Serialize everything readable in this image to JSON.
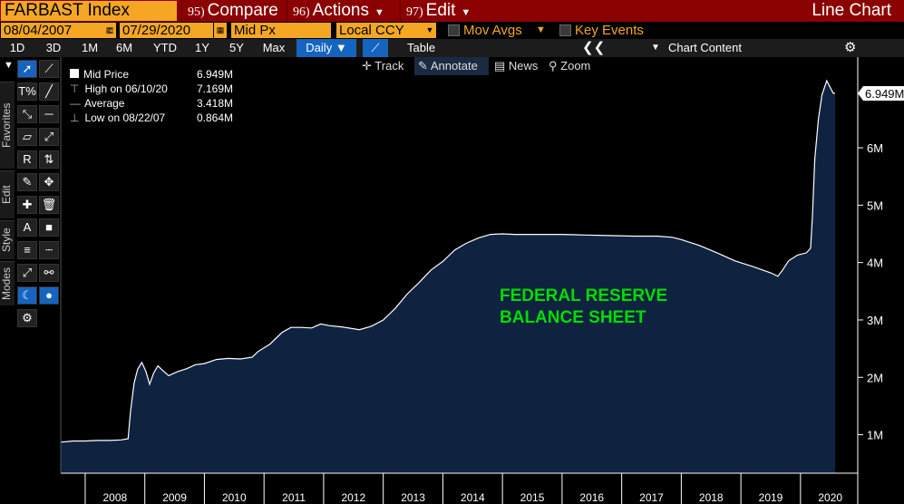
{
  "toolbar": {
    "ticker": "FARBAST Index",
    "compare_num": "95)",
    "compare_label": "Compare",
    "actions_num": "96)",
    "actions_label": "Actions",
    "edit_num": "97)",
    "edit_label": "Edit",
    "chart_kind": "Line Chart"
  },
  "options": {
    "start_date": "08/04/2007",
    "end_date": "07/29/2020",
    "dash": "-",
    "price_field": "Mid Px",
    "currency": "Local CCY",
    "mov_avgs": "Mov Avgs",
    "key_events": "Key Events"
  },
  "ranges": [
    "1D",
    "3D",
    "1M",
    "6M",
    "YTD",
    "1Y",
    "5Y",
    "Max"
  ],
  "frequency": "Daily",
  "table_label": "Table",
  "chart_content_label": "Chart Content",
  "subtools": {
    "track": "Track",
    "annotate": "Annotate",
    "news": "News",
    "zoom": "Zoom"
  },
  "side_tabs": [
    "Favorites",
    "Edit",
    "Style",
    "Modes"
  ],
  "legend": {
    "rows": [
      {
        "label": "Mid Price",
        "value": "6.949M"
      },
      {
        "label": "High on 06/10/20",
        "value": "7.169M"
      },
      {
        "label": "Average",
        "value": "3.418M"
      },
      {
        "label": "Low on 08/22/07",
        "value": "0.864M"
      }
    ]
  },
  "colors": {
    "brand_bar": "#8b0000",
    "field": "#f5a623",
    "area_fill": "#0f2340",
    "area_line": "#ffffff",
    "annotation": "#00dd00",
    "selected": "#1565c0"
  },
  "chart_data": {
    "type": "area",
    "title": "",
    "annotation": "FEDERAL RESERVE\nBALANCE SHEET",
    "annotation_lines": [
      "FEDERAL RESERVE",
      "BALANCE SHEET"
    ],
    "xlabel": "",
    "ylabel": "",
    "x_ticks": [
      "2008",
      "2009",
      "2010",
      "2011",
      "2012",
      "2013",
      "2014",
      "2015",
      "2016",
      "2017",
      "2018",
      "2019",
      "2020"
    ],
    "y_ticks": [
      "1M",
      "2M",
      "3M",
      "4M",
      "5M",
      "6M"
    ],
    "ylim": [
      0.33,
      7.58
    ],
    "xlim": [
      2007.59,
      2020.58
    ],
    "last_value_label": "6.949M",
    "grid": false,
    "series": [
      {
        "name": "Mid Price",
        "points": [
          [
            2007.59,
            0.87
          ],
          [
            2007.8,
            0.89
          ],
          [
            2008.0,
            0.89
          ],
          [
            2008.2,
            0.9
          ],
          [
            2008.4,
            0.9
          ],
          [
            2008.6,
            0.91
          ],
          [
            2008.72,
            0.93
          ],
          [
            2008.76,
            1.4
          ],
          [
            2008.82,
            1.9
          ],
          [
            2008.88,
            2.14
          ],
          [
            2008.95,
            2.26
          ],
          [
            2009.02,
            2.1
          ],
          [
            2009.08,
            1.88
          ],
          [
            2009.15,
            2.08
          ],
          [
            2009.22,
            2.2
          ],
          [
            2009.3,
            2.12
          ],
          [
            2009.4,
            2.03
          ],
          [
            2009.55,
            2.1
          ],
          [
            2009.7,
            2.15
          ],
          [
            2009.85,
            2.22
          ],
          [
            2010.0,
            2.24
          ],
          [
            2010.2,
            2.31
          ],
          [
            2010.4,
            2.33
          ],
          [
            2010.6,
            2.32
          ],
          [
            2010.8,
            2.35
          ],
          [
            2010.9,
            2.45
          ],
          [
            2011.1,
            2.58
          ],
          [
            2011.3,
            2.78
          ],
          [
            2011.45,
            2.87
          ],
          [
            2011.6,
            2.87
          ],
          [
            2011.8,
            2.86
          ],
          [
            2011.95,
            2.93
          ],
          [
            2012.1,
            2.9
          ],
          [
            2012.3,
            2.88
          ],
          [
            2012.6,
            2.83
          ],
          [
            2012.8,
            2.89
          ],
          [
            2013.0,
            3.0
          ],
          [
            2013.2,
            3.2
          ],
          [
            2013.4,
            3.45
          ],
          [
            2013.6,
            3.65
          ],
          [
            2013.8,
            3.87
          ],
          [
            2014.0,
            4.02
          ],
          [
            2014.2,
            4.22
          ],
          [
            2014.4,
            4.34
          ],
          [
            2014.6,
            4.43
          ],
          [
            2014.8,
            4.49
          ],
          [
            2015.0,
            4.5
          ],
          [
            2015.2,
            4.49
          ],
          [
            2015.6,
            4.49
          ],
          [
            2016.0,
            4.49
          ],
          [
            2016.4,
            4.48
          ],
          [
            2016.8,
            4.47
          ],
          [
            2017.2,
            4.46
          ],
          [
            2017.6,
            4.46
          ],
          [
            2017.85,
            4.44
          ],
          [
            2018.0,
            4.4
          ],
          [
            2018.3,
            4.3
          ],
          [
            2018.6,
            4.17
          ],
          [
            2018.9,
            4.03
          ],
          [
            2019.2,
            3.93
          ],
          [
            2019.5,
            3.82
          ],
          [
            2019.62,
            3.76
          ],
          [
            2019.7,
            3.87
          ],
          [
            2019.8,
            4.03
          ],
          [
            2019.95,
            4.13
          ],
          [
            2020.1,
            4.17
          ],
          [
            2020.17,
            4.25
          ],
          [
            2020.2,
            4.8
          ],
          [
            2020.24,
            5.8
          ],
          [
            2020.3,
            6.5
          ],
          [
            2020.36,
            6.92
          ],
          [
            2020.44,
            7.17
          ],
          [
            2020.5,
            7.05
          ],
          [
            2020.55,
            6.95
          ],
          [
            2020.58,
            6.949
          ]
        ]
      }
    ]
  }
}
